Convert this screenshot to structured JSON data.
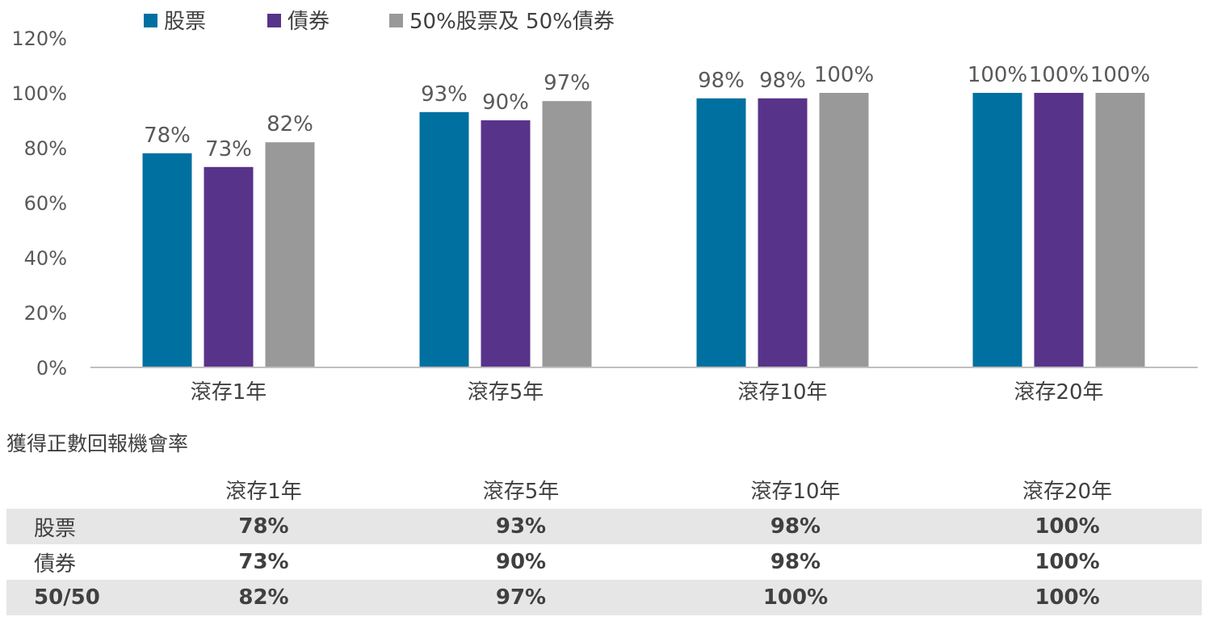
{
  "chart_data": {
    "type": "bar",
    "categories": [
      "滾存1年",
      "滾存5年",
      "滾存10年",
      "滾存20年"
    ],
    "series": [
      {
        "name": "股票",
        "color": "#0070a0",
        "values": [
          78,
          93,
          98,
          100
        ],
        "labels": [
          "78%",
          "93%",
          "98%",
          "100%"
        ]
      },
      {
        "name": "債券",
        "color": "#58338a",
        "values": [
          73,
          90,
          98,
          100
        ],
        "labels": [
          "73%",
          "90%",
          "98%",
          "100%"
        ]
      },
      {
        "name": "50%股票及 50%債券",
        "color": "#999999",
        "values": [
          82,
          97,
          100,
          100
        ],
        "labels": [
          "82%",
          "97%",
          "100%",
          "100%"
        ]
      }
    ],
    "yticks": [
      "0%",
      "20%",
      "40%",
      "60%",
      "80%",
      "100%",
      "120%"
    ],
    "ylim": [
      0,
      120
    ],
    "legend_position": "top",
    "grid": false
  },
  "table": {
    "caption": "獲得正數回報機會率",
    "headers": [
      "",
      "滾存1年",
      "滾存5年",
      "滾存10年",
      "滾存20年"
    ],
    "rows": [
      {
        "label": "股票",
        "values": [
          "78%",
          "93%",
          "98%",
          "100%"
        ]
      },
      {
        "label": "債券",
        "values": [
          "73%",
          "90%",
          "98%",
          "100%"
        ]
      },
      {
        "label": "50/50",
        "values": [
          "82%",
          "97%",
          "100%",
          "100%"
        ]
      }
    ]
  }
}
